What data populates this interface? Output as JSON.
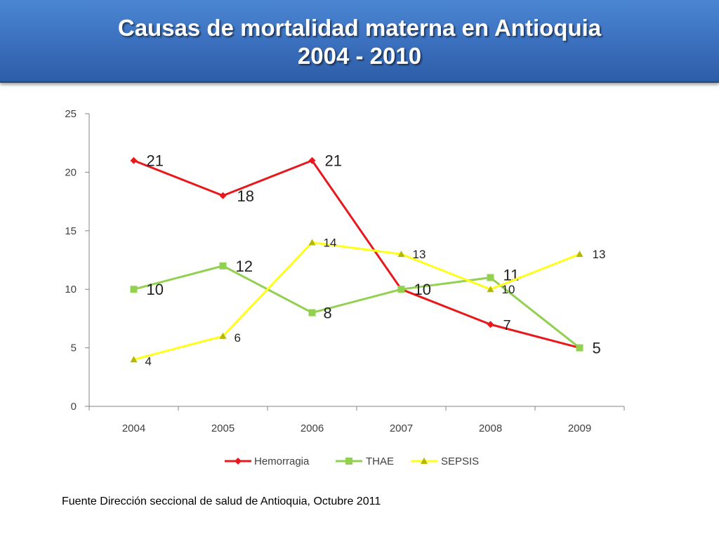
{
  "slide": {
    "title_line1": "Causas de mortalidad materna en Antioquia",
    "title_line2": "2004 - 2010",
    "footer": "Fuente Dirección seccional de salud de Antioquia, Octubre 2011"
  },
  "chart_data": {
    "type": "line",
    "categories": [
      "2004",
      "2005",
      "2006",
      "2007",
      "2008",
      "2009"
    ],
    "ylim": [
      0,
      25
    ],
    "yticks": [
      0,
      5,
      10,
      15,
      20,
      25
    ],
    "grid": false,
    "legend_position": "bottom",
    "series": [
      {
        "name": "Hemorragia",
        "values": [
          21,
          18,
          21,
          10,
          7,
          5
        ],
        "labels": [
          "21",
          "18",
          "21",
          "",
          "7",
          ""
        ],
        "color": "#e8191c",
        "marker": "diamond"
      },
      {
        "name": "THAE",
        "values": [
          10,
          12,
          8,
          10,
          11,
          5
        ],
        "labels": [
          "10",
          "12",
          "8",
          "10",
          "11",
          "5"
        ],
        "color": "#92d050",
        "marker": "square"
      },
      {
        "name": "SEPSIS",
        "values": [
          4,
          6,
          14,
          13,
          10,
          13
        ],
        "labels": [
          "4",
          "6",
          "14",
          "13",
          "10",
          "13"
        ],
        "color": "#ffff1a",
        "marker_color": "#b5b800",
        "marker": "triangle"
      }
    ]
  }
}
